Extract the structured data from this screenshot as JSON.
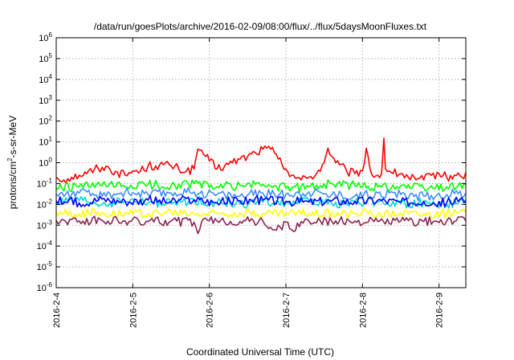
{
  "chart_data": {
    "type": "line",
    "title": "/data/run/goesPlots/archive/2016-02-09/08:00/flux/../flux/5daysMoonFluxes.txt",
    "xlabel": "Coordinated Universal Time (UTC)",
    "ylabel": {
      "base": "protons/cm",
      "sup": "2",
      "rest": "-s-sr-MeV"
    },
    "yscale": "log",
    "ylim_exp": [
      -6,
      6
    ],
    "y_ticks": [
      {
        "base": "10",
        "exp": "6"
      },
      {
        "base": "10",
        "exp": "5"
      },
      {
        "base": "10",
        "exp": "4"
      },
      {
        "base": "10",
        "exp": "3"
      },
      {
        "base": "10",
        "exp": "2"
      },
      {
        "base": "10",
        "exp": "1"
      },
      {
        "base": "10",
        "exp": "0"
      },
      {
        "base": "10",
        "exp": "-1"
      },
      {
        "base": "10",
        "exp": "-2"
      },
      {
        "base": "10",
        "exp": "-3"
      },
      {
        "base": "10",
        "exp": "-4"
      },
      {
        "base": "10",
        "exp": "-5"
      },
      {
        "base": "10",
        "exp": "-6"
      }
    ],
    "x_range_days": [
      0,
      5.35
    ],
    "x_ticks": [
      "2016-2-4",
      "2016-2-5",
      "2016-2-6",
      "2016-2-7",
      "2016-2-8",
      "2016-2-9"
    ],
    "grid": true,
    "series": [
      {
        "color": "#ff0000",
        "x": [
          0,
          0.1,
          0.2,
          0.3,
          0.4,
          0.5,
          0.6,
          0.7,
          0.8,
          0.9,
          1.0,
          1.1,
          1.2,
          1.3,
          1.4,
          1.5,
          1.6,
          1.7,
          1.8,
          1.85,
          1.9,
          1.95,
          2.0,
          2.1,
          2.2,
          2.3,
          2.4,
          2.5,
          2.6,
          2.7,
          2.75,
          2.8,
          2.85,
          2.9,
          2.95,
          3.0,
          3.1,
          3.2,
          3.3,
          3.4,
          3.5,
          3.55,
          3.6,
          3.65,
          3.7,
          3.8,
          3.9,
          4.0,
          4.05,
          4.1,
          4.15,
          4.2,
          4.25,
          4.28,
          4.3,
          4.35,
          4.4,
          4.5,
          4.6,
          4.7,
          4.8,
          4.9,
          5.0,
          5.1,
          5.2,
          5.3,
          5.35
        ],
        "y": [
          0.2,
          0.15,
          0.2,
          0.25,
          0.3,
          0.5,
          0.6,
          0.5,
          0.35,
          0.25,
          0.4,
          0.4,
          0.7,
          0.7,
          0.8,
          0.7,
          0.5,
          0.4,
          0.5,
          4.5,
          4.0,
          2.0,
          1.2,
          0.5,
          0.7,
          1.0,
          1.5,
          2.0,
          3.0,
          4.5,
          5.0,
          4.5,
          3.0,
          1.5,
          0.8,
          0.5,
          0.25,
          0.15,
          0.2,
          0.3,
          1.0,
          5.0,
          2.0,
          1.0,
          0.8,
          0.35,
          0.3,
          0.4,
          5.0,
          0.5,
          0.2,
          0.25,
          0.3,
          15.0,
          0.5,
          0.4,
          0.3,
          0.3,
          0.2,
          0.15,
          0.15,
          0.25,
          0.3,
          0.2,
          0.25,
          0.2,
          0.35
        ]
      },
      {
        "color": "#00ff00",
        "x": [
          0,
          0.3,
          0.6,
          0.9,
          1.2,
          1.5,
          1.8,
          2.1,
          2.4,
          2.7,
          3.0,
          3.3,
          3.6,
          3.9,
          4.2,
          4.5,
          4.8,
          5.1,
          5.35
        ],
        "y": [
          0.06,
          0.07,
          0.08,
          0.07,
          0.09,
          0.08,
          0.1,
          0.07,
          0.08,
          0.09,
          0.06,
          0.07,
          0.1,
          0.08,
          0.07,
          0.08,
          0.06,
          0.07,
          0.09
        ]
      },
      {
        "color": "#3d8fff",
        "x": [
          0,
          0.3,
          0.6,
          0.9,
          1.2,
          1.5,
          1.8,
          2.1,
          2.4,
          2.7,
          3.0,
          3.3,
          3.6,
          3.9,
          4.2,
          4.5,
          4.8,
          5.1,
          5.35
        ],
        "y": [
          0.03,
          0.035,
          0.025,
          0.04,
          0.03,
          0.035,
          0.04,
          0.03,
          0.025,
          0.035,
          0.03,
          0.04,
          0.03,
          0.025,
          0.035,
          0.03,
          0.025,
          0.03,
          0.035
        ]
      },
      {
        "color": "#00d8d8",
        "x": [
          0,
          0.3,
          0.6,
          0.9,
          1.2,
          1.5,
          1.8,
          2.1,
          2.4,
          2.7,
          3.0,
          3.3,
          3.6,
          3.9,
          4.2,
          4.5,
          4.8,
          5.1,
          5.35
        ],
        "y": [
          0.012,
          0.015,
          0.01,
          0.014,
          0.012,
          0.011,
          0.015,
          0.012,
          0.01,
          0.013,
          0.012,
          0.014,
          0.011,
          0.012,
          0.013,
          0.011,
          0.012,
          0.01,
          0.013
        ]
      },
      {
        "color": "#0000ff",
        "x": [
          0,
          0.3,
          0.6,
          0.9,
          1.2,
          1.5,
          1.8,
          2.1,
          2.4,
          2.7,
          3.0,
          3.3,
          3.6,
          3.9,
          4.2,
          4.5,
          4.8,
          5.1,
          5.35
        ],
        "y": [
          0.015,
          0.012,
          0.018,
          0.014,
          0.016,
          0.013,
          0.017,
          0.012,
          0.015,
          0.016,
          0.014,
          0.013,
          0.015,
          0.014,
          0.016,
          0.013,
          0.014,
          0.012,
          0.015
        ]
      },
      {
        "color": "#ffff00",
        "x": [
          0,
          0.3,
          0.6,
          0.9,
          1.2,
          1.5,
          1.8,
          2.1,
          2.4,
          2.7,
          3.0,
          3.3,
          3.6,
          3.9,
          4.2,
          4.5,
          4.8,
          5.1,
          5.35
        ],
        "y": [
          0.004,
          0.0035,
          0.004,
          0.0038,
          0.0036,
          0.004,
          0.0035,
          0.0037,
          0.004,
          0.0036,
          0.0038,
          0.0035,
          0.004,
          0.0037,
          0.0036,
          0.0039,
          0.0035,
          0.0038,
          0.004
        ]
      },
      {
        "color": "#8b2252",
        "x": [
          0,
          0.3,
          0.6,
          0.9,
          1.2,
          1.5,
          1.8,
          1.85,
          1.9,
          2.1,
          2.4,
          2.7,
          2.8,
          2.85,
          2.9,
          2.95,
          3.0,
          3.1,
          3.2,
          3.3,
          3.6,
          3.9,
          4.2,
          4.5,
          4.8,
          5.1,
          5.35
        ],
        "y": [
          0.0017,
          0.0016,
          0.0017,
          0.0016,
          0.0015,
          0.0016,
          0.0014,
          0.0004,
          0.0015,
          0.0016,
          0.0015,
          0.0016,
          0.0008,
          0.0006,
          0.001,
          0.0006,
          0.0014,
          0.0005,
          0.0015,
          0.0016,
          0.0015,
          0.0016,
          0.0015,
          0.0016,
          0.0015,
          0.0016,
          0.0016
        ]
      }
    ]
  }
}
